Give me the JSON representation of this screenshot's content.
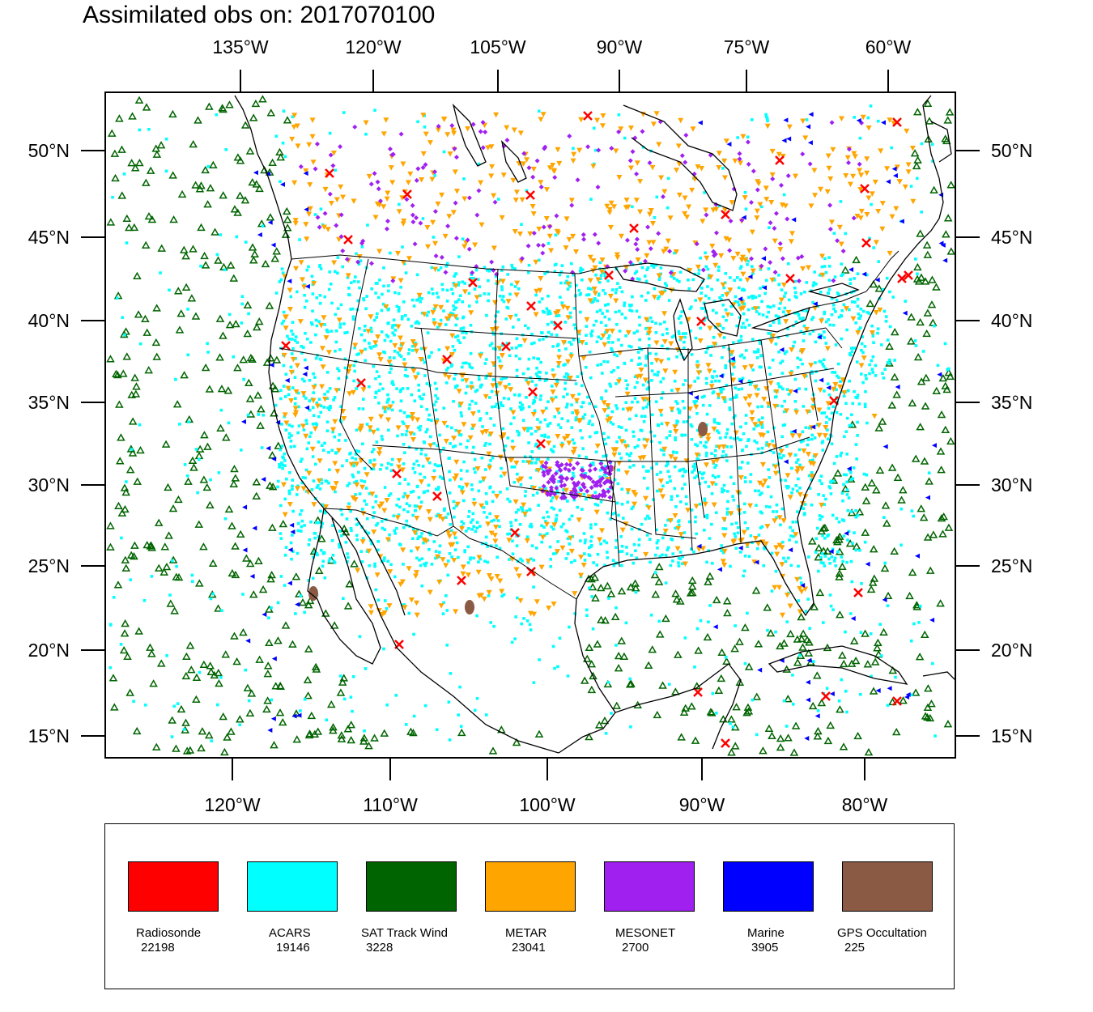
{
  "title": "Assimilated obs on: 2017070100",
  "top_axis_labels": [
    "135°W",
    "120°W",
    "105°W",
    "90°W",
    "75°W",
    "60°W"
  ],
  "bottom_axis_labels": [
    "120°W",
    "110°W",
    "100°W",
    "90°W",
    "80°W"
  ],
  "left_axis_labels": [
    "50°N",
    "45°N",
    "40°N",
    "35°N",
    "30°N",
    "25°N",
    "20°N",
    "15°N"
  ],
  "right_axis_labels": [
    "50°N",
    "45°N",
    "40°N",
    "35°N",
    "30°N",
    "25°N",
    "20°N",
    "15°N"
  ],
  "legend": [
    {
      "name": "Radiosonde",
      "count": "22198",
      "color": "#ff0000",
      "symbol": "x"
    },
    {
      "name": "ACARS",
      "count": "19146",
      "color": "#00ffff",
      "symbol": "square"
    },
    {
      "name": "SAT Track Wind",
      "count": "3228",
      "color": "#006400",
      "symbol": "triangle-up"
    },
    {
      "name": "METAR",
      "count": "23041",
      "color": "#ffa500",
      "symbol": "triangle-down"
    },
    {
      "name": "MESONET",
      "count": "2700",
      "color": "#a020f0",
      "symbol": "diamond"
    },
    {
      "name": "Marine",
      "count": "3905",
      "color": "#0000ff",
      "symbol": "triangle-left"
    },
    {
      "name": "GPS Occultation",
      "count": "225",
      "color": "#8b5a44",
      "symbol": "circle"
    }
  ]
}
